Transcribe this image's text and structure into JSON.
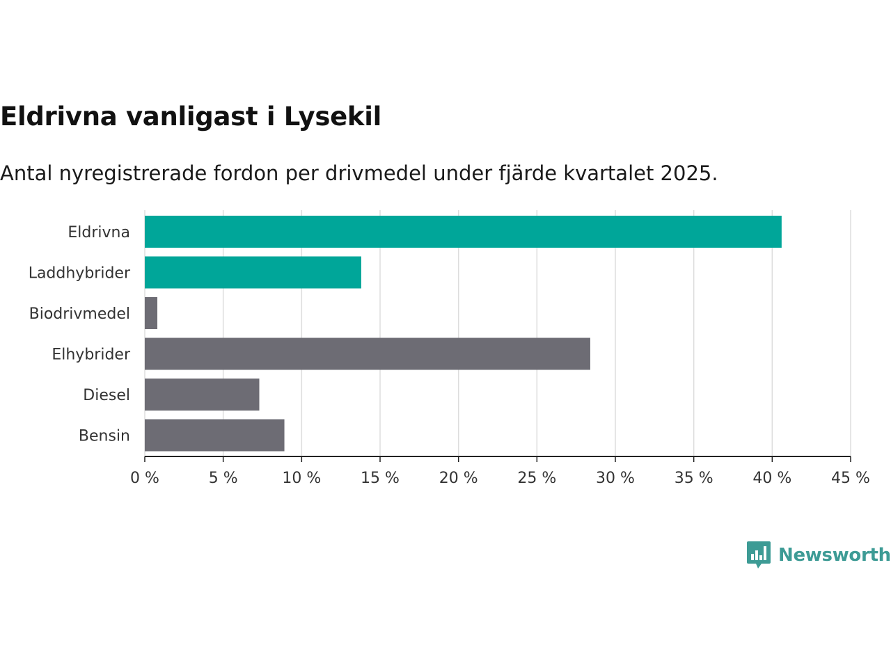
{
  "chart_data": {
    "type": "bar",
    "orientation": "horizontal",
    "title": "Eldrivna vanligast i Lysekil",
    "subtitle": "Antal nyregistrerade fordon per drivmedel under fjärde kvartalet 2025.",
    "categories": [
      "Eldrivna",
      "Laddhybrider",
      "Biodrivmedel",
      "Elhybrider",
      "Diesel",
      "Bensin"
    ],
    "values": [
      40.6,
      13.8,
      0.8,
      28.4,
      7.3,
      8.9
    ],
    "unit": "%",
    "xlim": [
      0,
      45
    ],
    "xticks": [
      0,
      5,
      10,
      15,
      20,
      25,
      30,
      35,
      40,
      45
    ],
    "xtick_labels": [
      "0 %",
      "5 %",
      "10 %",
      "15 %",
      "20 %",
      "25 %",
      "30 %",
      "35 %",
      "40 %",
      "45 %"
    ],
    "grid": true,
    "colors": {
      "highlight": "#00a699",
      "other": "#6d6c74",
      "grid": "#dddddd",
      "axis": "#222222"
    },
    "highlighted": [
      "Eldrivna",
      "Laddhybrider"
    ]
  },
  "brand": {
    "name": "Newsworthy",
    "icon": "bar-chart-speech-bubble-icon",
    "color": "#3d9b95"
  }
}
